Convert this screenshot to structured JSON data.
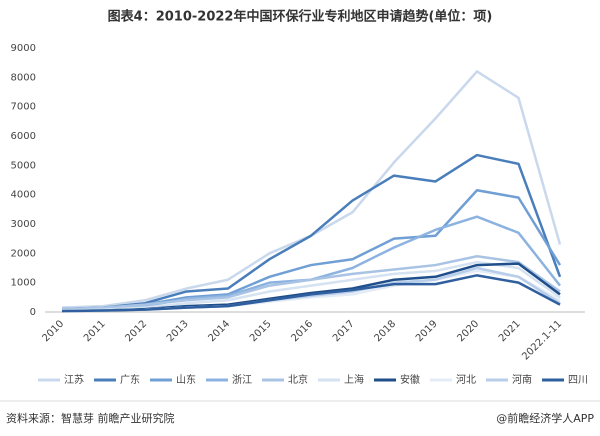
{
  "chart_data": {
    "type": "line",
    "title": "图表4：2010-2022年中国环保行业专利地区申请趋势(单位：项)",
    "categories": [
      "2010",
      "2011",
      "2012",
      "2013",
      "2014",
      "2015",
      "2016",
      "2017",
      "2018",
      "2019",
      "2020",
      "2021",
      "2022.1-11"
    ],
    "series": [
      {
        "name": "江苏",
        "color": "#c9d8ec",
        "values": [
          150,
          200,
          400,
          800,
          1100,
          2000,
          2600,
          3400,
          5100,
          6600,
          8200,
          7300,
          2300
        ]
      },
      {
        "name": "广东",
        "color": "#4a7ebb",
        "values": [
          100,
          150,
          300,
          700,
          800,
          1800,
          2600,
          3800,
          4650,
          4450,
          5350,
          5050,
          1200
        ]
      },
      {
        "name": "山东",
        "color": "#6f9fd4",
        "values": [
          80,
          120,
          250,
          500,
          600,
          1200,
          1600,
          1800,
          2500,
          2600,
          4150,
          3900,
          1600
        ]
      },
      {
        "name": "浙江",
        "color": "#8cb3e0",
        "values": [
          60,
          100,
          200,
          450,
          550,
          1000,
          1100,
          1500,
          2200,
          2800,
          3250,
          2700,
          900
        ]
      },
      {
        "name": "北京",
        "color": "#a8c3e4",
        "values": [
          100,
          150,
          250,
          400,
          500,
          900,
          1100,
          1300,
          1450,
          1600,
          1900,
          1700,
          700
        ]
      },
      {
        "name": "上海",
        "color": "#d5e2f1",
        "values": [
          50,
          80,
          150,
          300,
          400,
          700,
          900,
          1100,
          1300,
          1400,
          1700,
          1500,
          500
        ]
      },
      {
        "name": "安徽",
        "color": "#1f4e8a",
        "values": [
          30,
          50,
          100,
          200,
          250,
          450,
          650,
          800,
          1100,
          1200,
          1600,
          1650,
          600
        ]
      },
      {
        "name": "河北",
        "color": "#e3ecf6",
        "values": [
          30,
          50,
          80,
          150,
          200,
          350,
          500,
          600,
          900,
          1100,
          1400,
          1200,
          400
        ]
      },
      {
        "name": "河南",
        "color": "#b7cde9",
        "values": [
          30,
          50,
          80,
          150,
          200,
          400,
          550,
          700,
          1000,
          1100,
          1500,
          1200,
          300
        ]
      },
      {
        "name": "四川",
        "color": "#2f5f9f",
        "values": [
          30,
          50,
          80,
          150,
          200,
          400,
          600,
          750,
          950,
          950,
          1250,
          1000,
          250
        ]
      }
    ],
    "ylim": [
      0,
      9000
    ],
    "yticks": [
      0,
      1000,
      2000,
      3000,
      4000,
      5000,
      6000,
      7000,
      8000,
      9000
    ],
    "grid": false,
    "source": "资料来源：智慧芽 前瞻产业研究院",
    "credit": "@前瞻经济学人APP"
  }
}
